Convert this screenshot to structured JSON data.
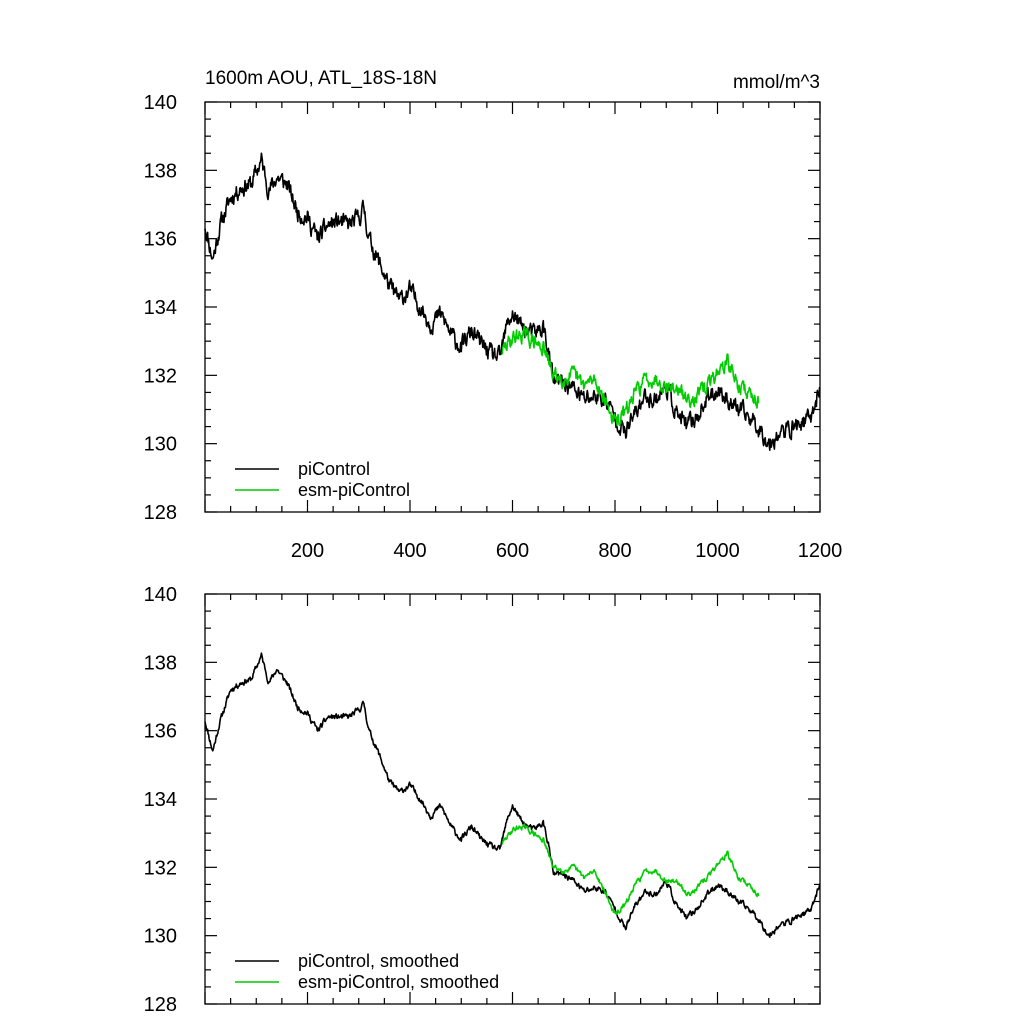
{
  "chart_data": [
    {
      "type": "line",
      "title": "1600m AOU, ATL_18S-18N",
      "units": "mmol/m^3",
      "xlim": [
        0,
        1200
      ],
      "ylim": [
        128,
        140
      ],
      "x_ticks": [
        200,
        400,
        600,
        800,
        1000,
        1200
      ],
      "x_tick_labels": [
        "200",
        "400",
        "600",
        "800",
        "1000",
        "1200"
      ],
      "y_ticks": [
        128,
        130,
        132,
        134,
        136,
        138,
        140
      ],
      "y_tick_labels": [
        "128",
        "130",
        "132",
        "134",
        "136",
        "138",
        "140"
      ],
      "legend_position": "bottom-left",
      "series": [
        {
          "name": "piControl",
          "color": "#000000",
          "noise": 0.35,
          "seed": 11,
          "x": [
            0,
            15,
            30,
            50,
            70,
            90,
            110,
            125,
            140,
            160,
            180,
            200,
            220,
            240,
            260,
            280,
            300,
            310,
            320,
            340,
            360,
            380,
            400,
            420,
            440,
            460,
            480,
            500,
            520,
            540,
            560,
            575,
            590,
            600,
            620,
            640,
            660,
            670,
            680,
            700,
            720,
            740,
            760,
            780,
            800,
            820,
            840,
            860,
            880,
            900,
            920,
            940,
            960,
            980,
            1000,
            1020,
            1040,
            1060,
            1080,
            1100,
            1120,
            1140,
            1160,
            1180,
            1200
          ],
          "y": [
            136.4,
            135.4,
            136.4,
            137.2,
            137.5,
            137.6,
            138.3,
            137.4,
            137.8,
            137.6,
            136.8,
            136.6,
            136.0,
            136.4,
            136.5,
            136.4,
            136.6,
            136.9,
            136.0,
            135.3,
            134.6,
            134.2,
            134.5,
            134.0,
            133.5,
            133.8,
            133.2,
            132.8,
            133.3,
            132.9,
            132.6,
            132.5,
            133.5,
            133.8,
            133.4,
            133.2,
            133.4,
            132.7,
            131.8,
            131.8,
            131.6,
            131.3,
            131.4,
            131.3,
            130.8,
            130.3,
            130.9,
            131.4,
            131.3,
            131.7,
            130.9,
            130.5,
            130.8,
            131.3,
            131.6,
            131.3,
            131.0,
            130.8,
            130.5,
            130.0,
            130.3,
            130.4,
            130.6,
            130.7,
            131.6
          ]
        },
        {
          "name": "esm-piControl",
          "color": "#00cc00",
          "noise": 0.3,
          "seed": 29,
          "x": [
            580,
            600,
            620,
            640,
            660,
            680,
            700,
            720,
            740,
            760,
            780,
            800,
            820,
            840,
            860,
            880,
            900,
            920,
            940,
            960,
            980,
            1000,
            1020,
            1040,
            1060,
            1080
          ],
          "y": [
            132.7,
            133.1,
            133.2,
            133.0,
            132.8,
            132.0,
            131.9,
            132.0,
            131.7,
            131.9,
            131.3,
            130.6,
            130.9,
            131.5,
            131.9,
            131.9,
            131.7,
            131.6,
            131.3,
            131.4,
            131.7,
            132.1,
            132.4,
            131.7,
            131.5,
            131.3
          ]
        }
      ]
    },
    {
      "type": "line",
      "xlim": [
        0,
        1200
      ],
      "ylim": [
        128,
        140
      ],
      "y_ticks": [
        128,
        130,
        132,
        134,
        136,
        138,
        140
      ],
      "y_tick_labels": [
        "128",
        "130",
        "132",
        "134",
        "136",
        "138",
        "140"
      ],
      "legend_position": "bottom-left",
      "series": [
        {
          "name": "piControl, smoothed",
          "color": "#000000",
          "noise": 0.12,
          "seed": 11,
          "x": [
            0,
            15,
            30,
            50,
            70,
            90,
            110,
            125,
            140,
            160,
            180,
            200,
            220,
            240,
            260,
            280,
            300,
            310,
            320,
            340,
            360,
            380,
            400,
            420,
            440,
            460,
            480,
            500,
            520,
            540,
            560,
            575,
            590,
            600,
            620,
            640,
            660,
            670,
            680,
            700,
            720,
            740,
            760,
            780,
            800,
            820,
            840,
            860,
            880,
            900,
            920,
            940,
            960,
            980,
            1000,
            1020,
            1040,
            1060,
            1080,
            1100,
            1120,
            1140,
            1160,
            1180,
            1200
          ],
          "y": [
            136.3,
            135.4,
            136.3,
            137.2,
            137.4,
            137.5,
            138.2,
            137.4,
            137.8,
            137.4,
            136.7,
            136.5,
            136.0,
            136.4,
            136.4,
            136.4,
            136.6,
            136.8,
            136.0,
            135.3,
            134.5,
            134.2,
            134.4,
            134.0,
            133.5,
            133.8,
            133.2,
            132.8,
            133.2,
            132.8,
            132.6,
            132.5,
            133.4,
            133.8,
            133.3,
            133.1,
            133.3,
            132.7,
            131.8,
            131.8,
            131.6,
            131.3,
            131.4,
            131.3,
            130.8,
            130.2,
            130.9,
            131.3,
            131.2,
            131.6,
            130.9,
            130.5,
            130.8,
            131.2,
            131.5,
            131.3,
            131.0,
            130.8,
            130.5,
            130.0,
            130.3,
            130.4,
            130.6,
            130.7,
            131.5
          ]
        },
        {
          "name": "esm-piControl, smoothed",
          "color": "#00cc00",
          "noise": 0.1,
          "seed": 29,
          "x": [
            580,
            600,
            620,
            640,
            660,
            680,
            700,
            720,
            740,
            760,
            780,
            800,
            820,
            840,
            860,
            880,
            900,
            920,
            940,
            960,
            980,
            1000,
            1020,
            1040,
            1060,
            1080
          ],
          "y": [
            132.7,
            133.1,
            133.2,
            133.0,
            132.8,
            132.0,
            131.9,
            132.0,
            131.7,
            131.9,
            131.3,
            130.6,
            130.9,
            131.5,
            131.9,
            131.9,
            131.6,
            131.6,
            131.2,
            131.4,
            131.7,
            132.1,
            132.4,
            131.7,
            131.5,
            131.2
          ]
        }
      ]
    }
  ]
}
